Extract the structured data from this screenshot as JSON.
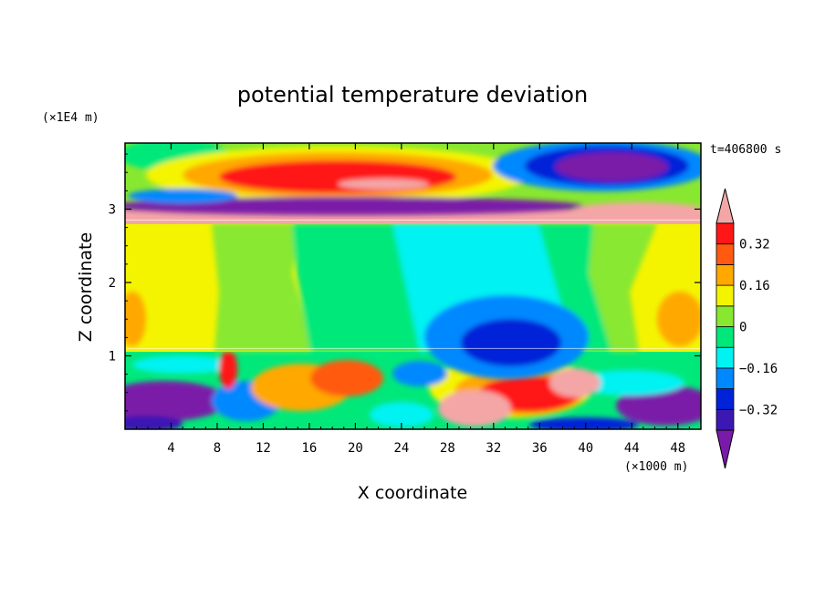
{
  "chart_data": {
    "type": "heatmap",
    "title": "potential temperature deviation",
    "xlabel": "X coordinate",
    "ylabel": "Z coordinate",
    "x_unit": "(×1000 m)",
    "y_unit": "(×1E4 m)",
    "time_label": "t=406800 s",
    "xlim": [
      0,
      50
    ],
    "ylim": [
      0,
      3.9
    ],
    "x_ticks": [
      4,
      8,
      12,
      16,
      20,
      24,
      28,
      32,
      36,
      40,
      44,
      48
    ],
    "y_ticks": [
      1,
      2,
      3
    ],
    "levels": [
      -0.4,
      -0.32,
      -0.24,
      -0.16,
      -0.08,
      0,
      0.08,
      0.16,
      0.24,
      0.32,
      0.4
    ],
    "colorbar_labels": [
      0.32,
      0.16,
      0,
      -0.16,
      -0.32
    ],
    "palette": [
      "#7a1aa8",
      "#3b18b4",
      "#0022d8",
      "#0088ff",
      "#00f2f2",
      "#00e87a",
      "#88e830",
      "#f4f400",
      "#ffa800",
      "#ff5a10",
      "#ff1616",
      "#f4a6a6"
    ],
    "regions": [
      {
        "x": [
          0,
          50
        ],
        "z": [
          1.1,
          2.85
        ],
        "value": 0.06
      },
      {
        "x": [
          0,
          50
        ],
        "z": [
          2.85,
          3.05
        ],
        "value": 0.45
      }
    ]
  }
}
